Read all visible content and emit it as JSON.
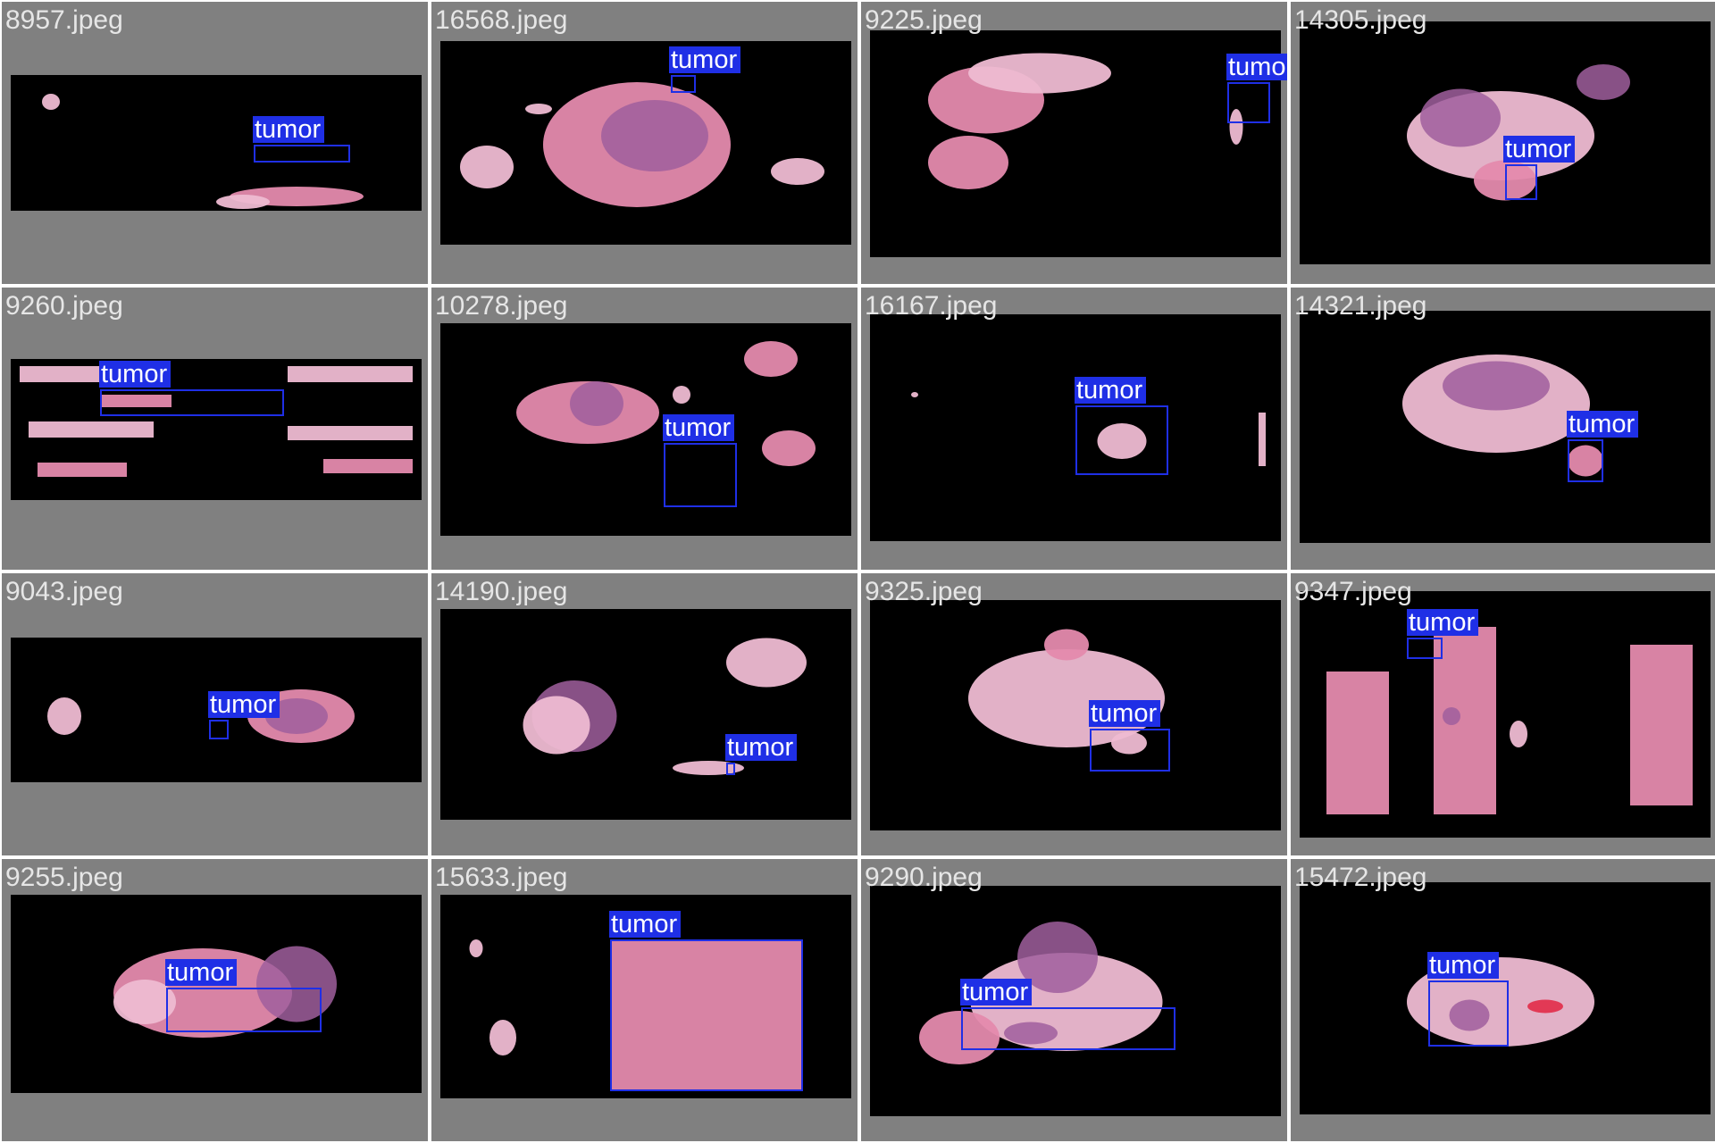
{
  "grid_title": "",
  "colors": {
    "background": "#808080",
    "slide_background": "#000000",
    "box": "#1f2fe6",
    "label_text": "#ffffff",
    "filename_text": "#e6e6e6",
    "tissue_pink": "#e48aad",
    "tissue_purple": "#a05f9e"
  },
  "tiles": [
    {
      "filename": "8957.jpeg",
      "detections": [
        {
          "label": "tumor"
        }
      ]
    },
    {
      "filename": "16568.jpeg",
      "detections": [
        {
          "label": "tumor"
        }
      ]
    },
    {
      "filename": "9225.jpeg",
      "detections": [
        {
          "label": "tumor"
        }
      ]
    },
    {
      "filename": "14305.jpeg",
      "detections": [
        {
          "label": "tumor"
        }
      ]
    },
    {
      "filename": "9260.jpeg",
      "detections": [
        {
          "label": "tumor"
        }
      ]
    },
    {
      "filename": "10278.jpeg",
      "detections": [
        {
          "label": "tumor"
        }
      ]
    },
    {
      "filename": "16167.jpeg",
      "detections": [
        {
          "label": "tumor"
        }
      ]
    },
    {
      "filename": "14321.jpeg",
      "detections": [
        {
          "label": "tumor"
        }
      ]
    },
    {
      "filename": "9043.jpeg",
      "detections": [
        {
          "label": "tumor"
        }
      ]
    },
    {
      "filename": "14190.jpeg",
      "detections": [
        {
          "label": "tumor"
        }
      ]
    },
    {
      "filename": "9325.jpeg",
      "detections": [
        {
          "label": "tumor"
        }
      ]
    },
    {
      "filename": "9347.jpeg",
      "detections": [
        {
          "label": "tumor"
        }
      ]
    },
    {
      "filename": "9255.jpeg",
      "detections": [
        {
          "label": "tumor"
        }
      ]
    },
    {
      "filename": "15633.jpeg",
      "detections": [
        {
          "label": "tumor"
        }
      ]
    },
    {
      "filename": "9290.jpeg",
      "detections": [
        {
          "label": "tumor"
        }
      ]
    },
    {
      "filename": "15472.jpeg",
      "detections": [
        {
          "label": "tumor"
        }
      ]
    }
  ]
}
